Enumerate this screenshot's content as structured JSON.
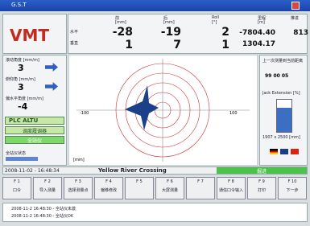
{
  "window": {
    "title": "G.S.T"
  },
  "header": {
    "logo": "VMT",
    "row_labels": [
      "水平",
      "垂直"
    ],
    "columns": [
      {
        "label": "前",
        "unit": "[mm]",
        "values": [
          "-28",
          "1"
        ]
      },
      {
        "label": "后",
        "unit": "[mm]",
        "values": [
          "-19",
          "7"
        ]
      },
      {
        "label": "Roll",
        "unit": "[°]",
        "values": [
          "2",
          "1"
        ]
      },
      {
        "label": "里程",
        "unit": "[m]",
        "values": [
          "-7804.40",
          "1304.17"
        ]
      },
      {
        "label": "推进",
        "unit": "",
        "values": [
          "813"
        ]
      }
    ]
  },
  "left_panel": {
    "items": [
      {
        "label": "滚动角度 [mm/m]",
        "value": "3"
      },
      {
        "label": "俯仰角 [mm/m]",
        "value": "3"
      },
      {
        "label": "偏水平角度 [mm/m]",
        "value": "-4"
      }
    ],
    "plc": "PLC  ALTU",
    "status1": "调度履调器",
    "status2": "全站仪",
    "status3": "全站仪状态"
  },
  "plot": {
    "x_left": "-100",
    "x_right": "100",
    "unit": "[mm]"
  },
  "right_panel": {
    "last_measure_label": "上一次测量到当前距离",
    "last_measure_value": "99 00 05",
    "jack_label": "Jack Extension [%]",
    "jack_value": "1907 x 2500 [mm]"
  },
  "status_bar": {
    "datetime": "2008-11-02 - 16:48:34",
    "project": "Yellow River Crossing",
    "mode": "掘进"
  },
  "function_keys": [
    {
      "key": "F 1",
      "label": "口令"
    },
    {
      "key": "F 2",
      "label": "导入测量"
    },
    {
      "key": "F 3",
      "label": "选择测量点"
    },
    {
      "key": "F 4",
      "label": "偏移修改"
    },
    {
      "key": "F 5",
      "label": ""
    },
    {
      "key": "F 6",
      "label": "大屏测量"
    },
    {
      "key": "F 7",
      "label": ""
    },
    {
      "key": "F 8",
      "label": "通信口令输入"
    },
    {
      "key": "F 9",
      "label": "打印"
    },
    {
      "key": "F 10",
      "label": "下一步"
    }
  ],
  "messages": [
    "2008-11-2 16:48:30 - 全站仪未激",
    "2008-11-2 16:48:30 - 全站仪OK"
  ]
}
